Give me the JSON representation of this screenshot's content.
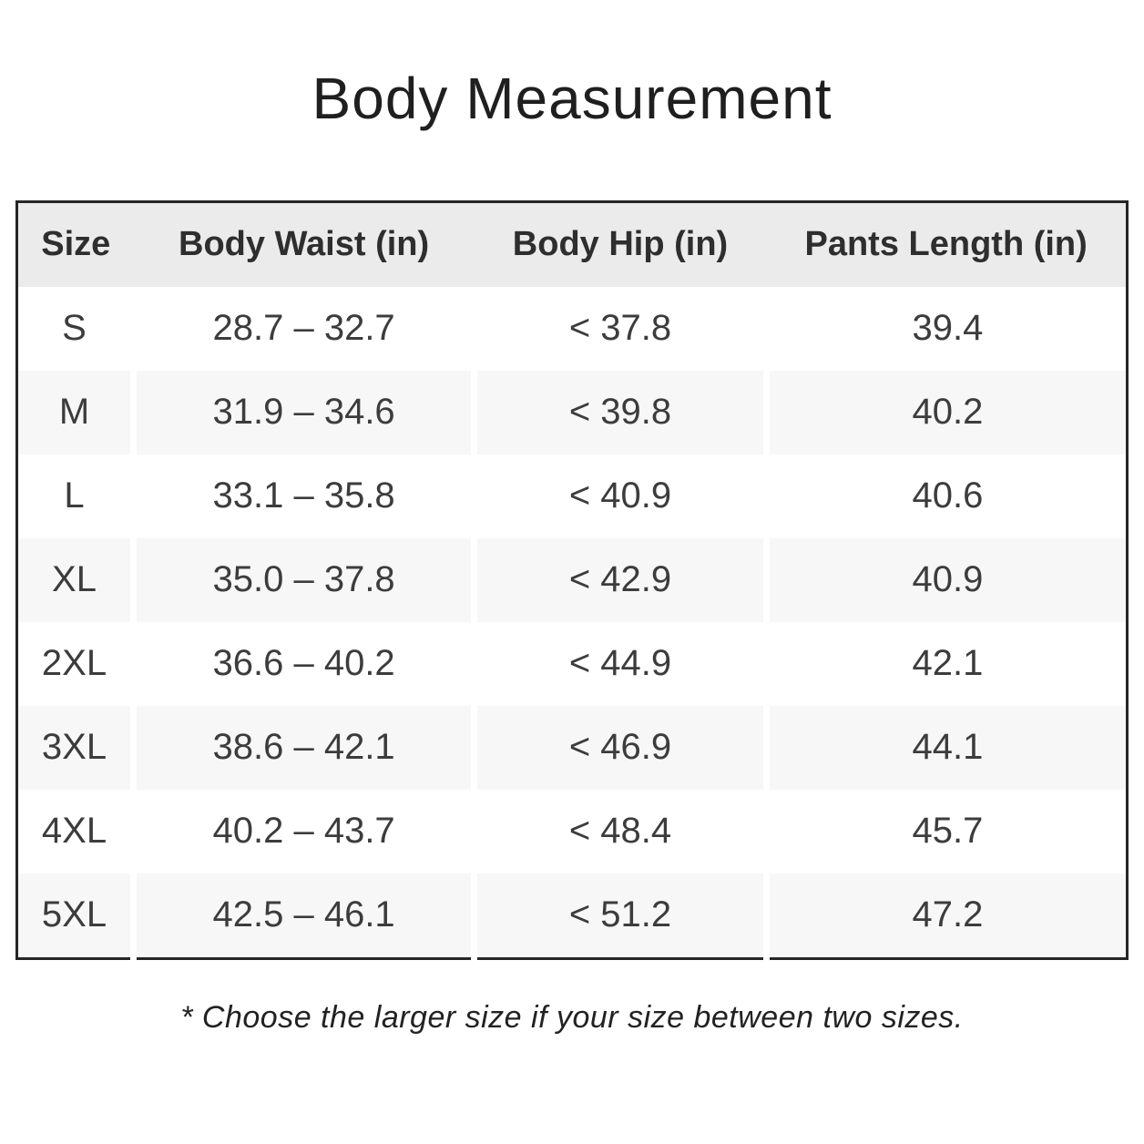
{
  "page": {
    "title": "Body Measurement",
    "footnote": "* Choose the larger size if your size between two sizes."
  },
  "table": {
    "columns": [
      "Size",
      "Body Waist (in)",
      "Body Hip (in)",
      "Pants Length (in)"
    ],
    "rows": [
      {
        "size": "S",
        "waist": "28.7 – 32.7",
        "hip": "< 37.8",
        "length": "39.4"
      },
      {
        "size": "M",
        "waist": "31.9 – 34.6",
        "hip": "< 39.8",
        "length": "40.2"
      },
      {
        "size": "L",
        "waist": "33.1 – 35.8",
        "hip": "< 40.9",
        "length": "40.6"
      },
      {
        "size": "XL",
        "waist": "35.0 – 37.8",
        "hip": "< 42.9",
        "length": "40.9"
      },
      {
        "size": "2XL",
        "waist": "36.6 – 40.2",
        "hip": "< 44.9",
        "length": "42.1"
      },
      {
        "size": "3XL",
        "waist": "38.6 – 42.1",
        "hip": "< 46.9",
        "length": "44.1"
      },
      {
        "size": "4XL",
        "waist": "40.2 – 43.7",
        "hip": "< 48.4",
        "length": "45.7"
      },
      {
        "size": "5XL",
        "waist": "42.5 – 46.1",
        "hip": "< 51.2",
        "length": "47.2"
      }
    ]
  },
  "colors": {
    "header_bg": "#ebebeb",
    "row_stripe_bg": "#f7f7f7",
    "table_border": "#262626",
    "header_text": "#2e2e2e",
    "cell_text": "#3c3c3c",
    "title_text": "#1f1f1f"
  }
}
